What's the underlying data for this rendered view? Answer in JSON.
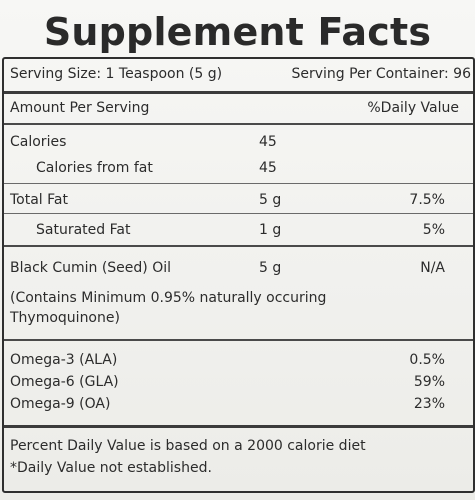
{
  "label": {
    "title": "Supplement Facts",
    "serving_size": "Serving Size: 1 Teaspoon (5 g)",
    "serving_per_container": "Serving Per Container: 96",
    "amount_per_serving": "Amount Per Serving",
    "daily_value_header": "%Daily Value",
    "rows": [
      {
        "name": "Calories",
        "amount": "45",
        "dv": ""
      },
      {
        "name": "Calories from fat",
        "amount": "45",
        "dv": ""
      },
      {
        "name": "Total Fat",
        "amount": "5 g",
        "dv": "7.5%"
      },
      {
        "name": "Saturated Fat",
        "amount": "1 g",
        "dv": "5%"
      },
      {
        "name": "Black Cumin (Seed) Oil",
        "amount": "5 g",
        "dv": "N/A"
      }
    ],
    "note_line1": "(Contains Minimum 0.95% naturally occuring",
    "note_line2": "Thymoquinone)",
    "omegas": [
      {
        "name": "Omega-3 (ALA)",
        "dv": "0.5%"
      },
      {
        "name": "Omega-6 (GLA)",
        "dv": "59%"
      },
      {
        "name": "Omega-9 (OA)",
        "dv": "23%"
      }
    ],
    "footer_line1": "Percent Daily Value is based on a 2000 calorie diet",
    "footer_line2": "*Daily Value  not established."
  }
}
